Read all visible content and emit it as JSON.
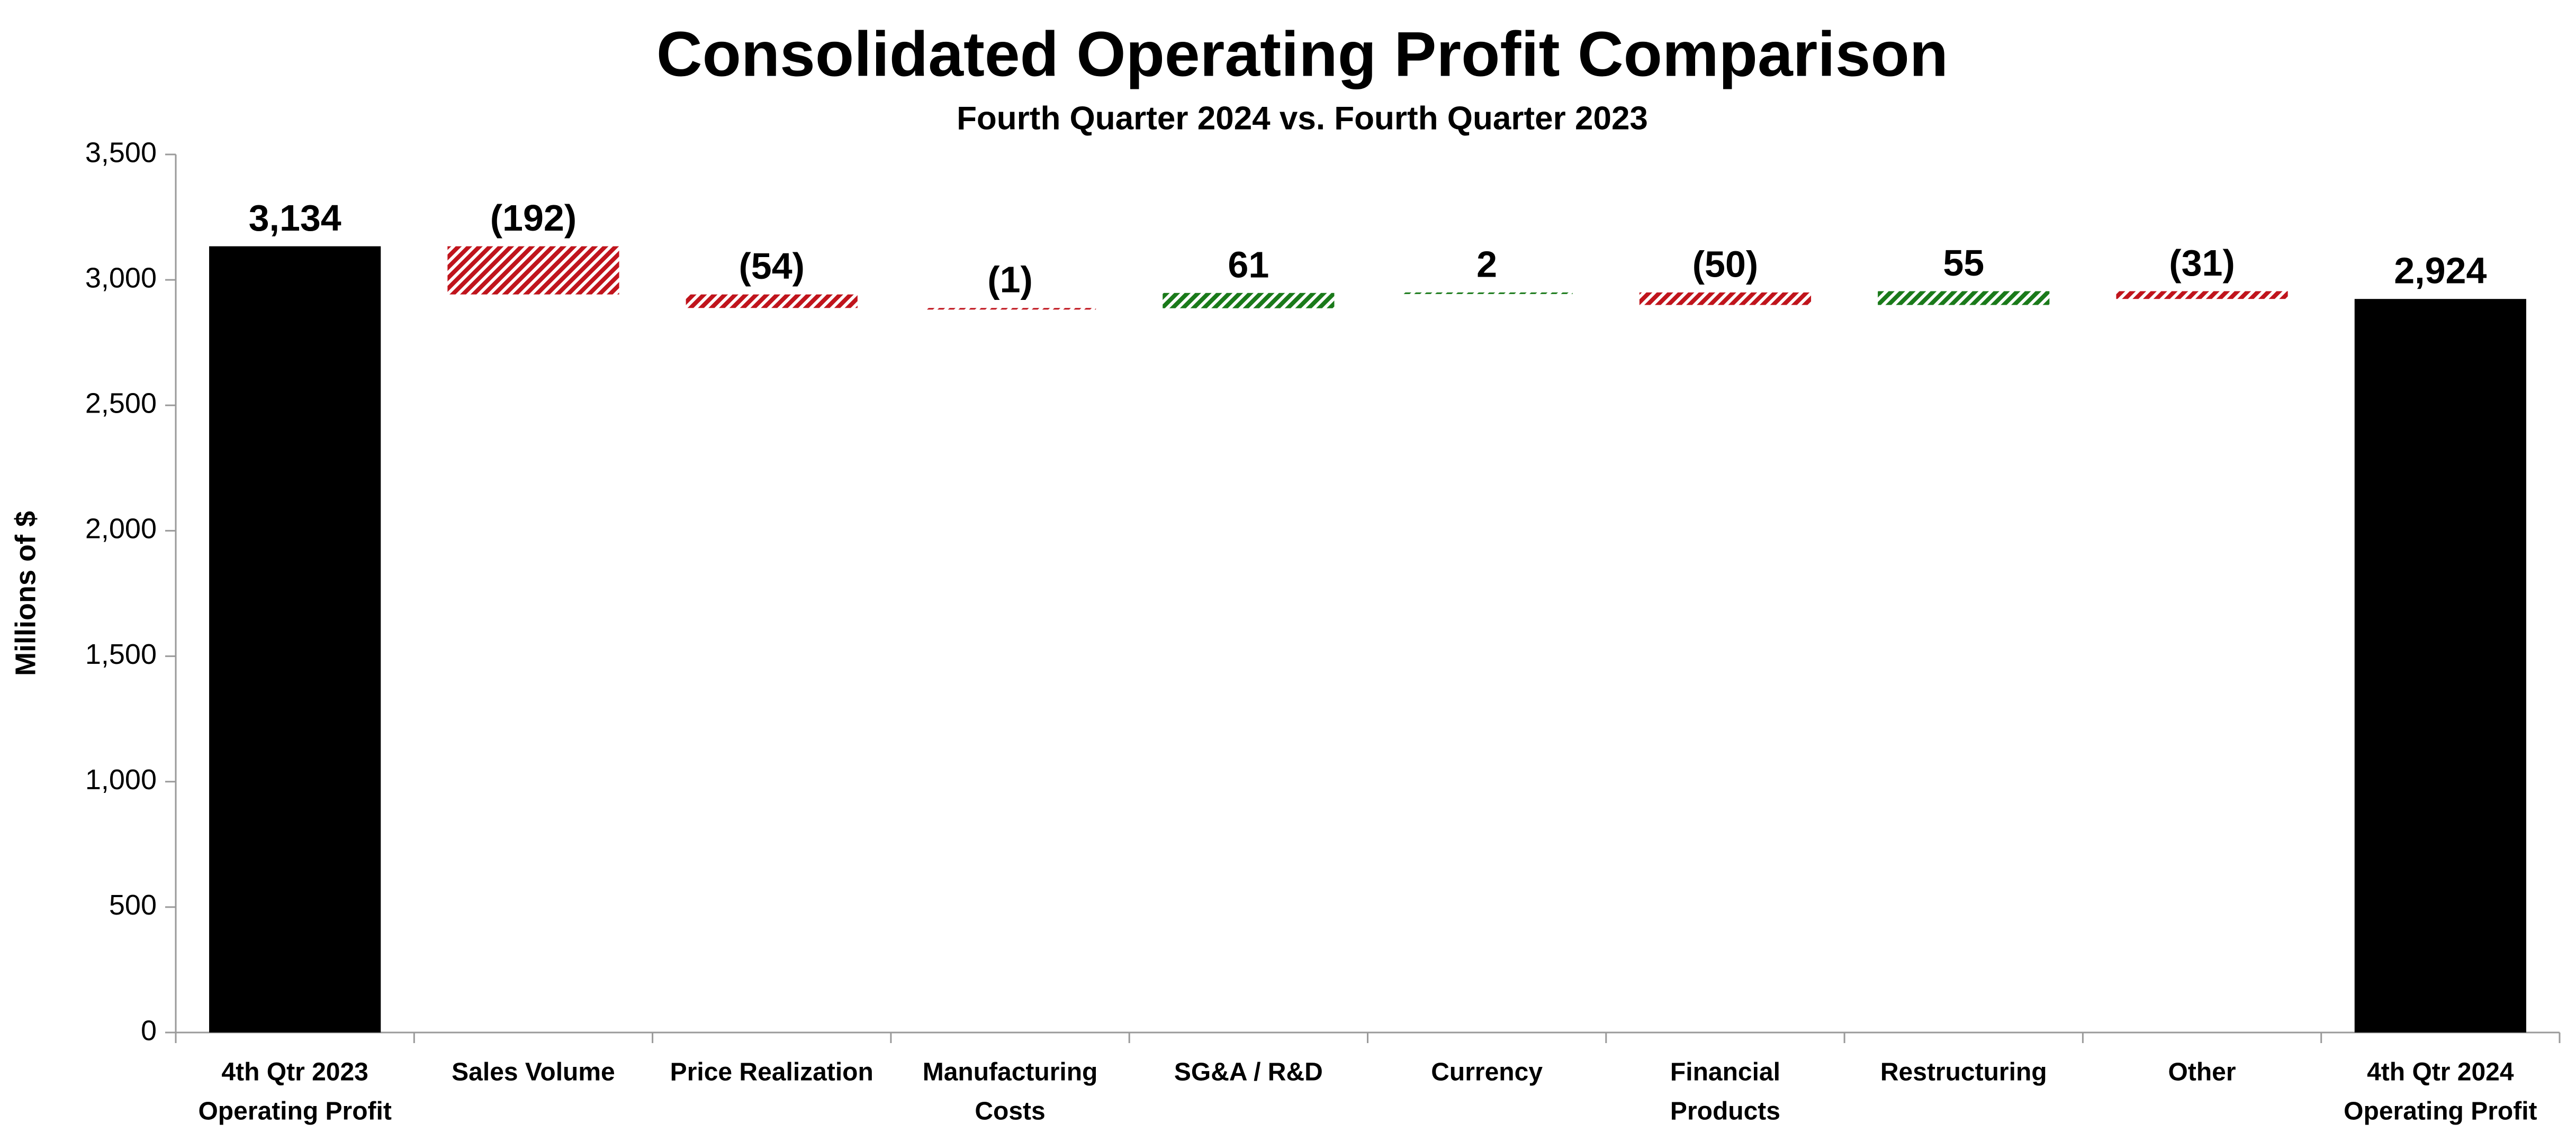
{
  "chart_data": {
    "type": "waterfall",
    "title": "Consolidated Operating Profit Comparison",
    "subtitle": "Fourth Quarter 2024 vs. Fourth Quarter 2023",
    "y_label": "Millions of $",
    "categories": [
      [
        "4th Qtr 2023",
        "Operating Profit"
      ],
      [
        "Sales Volume"
      ],
      [
        "Price Realization"
      ],
      [
        "Manufacturing",
        "Costs"
      ],
      [
        "SG&A / R&D"
      ],
      [
        "Currency"
      ],
      [
        "Financial",
        "Products"
      ],
      [
        "Restructuring"
      ],
      [
        "Other"
      ],
      [
        "4th Qtr 2024",
        "Operating Profit"
      ]
    ],
    "values": [
      3134,
      -192,
      -54,
      -1,
      61,
      2,
      -50,
      55,
      -31,
      2924
    ],
    "value_labels": [
      "3,134",
      "(192)",
      "(54)",
      "(1)",
      "61",
      "2",
      "(50)",
      "55",
      "(31)",
      "2,924"
    ],
    "total_color": "#000000",
    "increase_color": "#1a7a1a",
    "decrease_color": "#c0141c",
    "ylim": [
      0,
      3500
    ],
    "yticks": [
      0,
      500,
      {
        "value": 1000,
        "label": "1,000"
      },
      {
        "value": 1500,
        "label": "1,500"
      },
      {
        "value": 2000,
        "label": "2,000"
      },
      {
        "value": 2500,
        "label": "2,500"
      },
      {
        "value": 3000,
        "label": "3,000"
      },
      {
        "value": 3500,
        "label": "3,500"
      }
    ],
    "grid": false
  }
}
